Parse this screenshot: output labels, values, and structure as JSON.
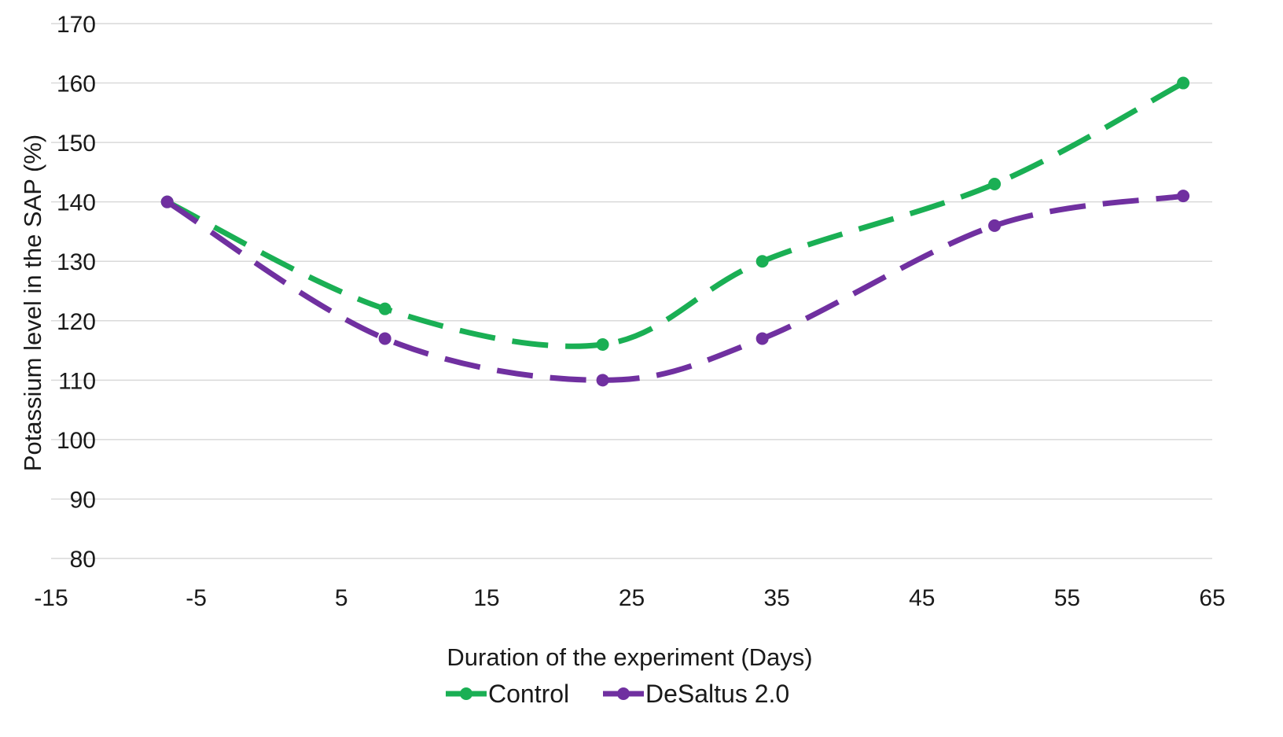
{
  "chart_data": {
    "type": "line",
    "title": "",
    "xlabel": "Duration of the experiment (Days)",
    "ylabel": "Potassium level in the SAP (%)",
    "xlim": [
      -15,
      65
    ],
    "ylim": [
      80,
      170
    ],
    "xticks": [
      -15,
      -5,
      5,
      15,
      25,
      35,
      45,
      55,
      65
    ],
    "yticks": [
      80,
      90,
      100,
      110,
      120,
      130,
      140,
      150,
      160,
      170
    ],
    "grid": true,
    "legend": "bottom",
    "series": [
      {
        "name": "Control",
        "color": "#1aaf54",
        "x": [
          -7,
          8,
          23,
          34,
          50,
          63
        ],
        "values": [
          140,
          122,
          116,
          130,
          143,
          160
        ]
      },
      {
        "name": "DeSaltus 2.0",
        "color": "#7030a0",
        "x": [
          -7,
          8,
          23,
          34,
          50,
          63
        ],
        "values": [
          140,
          117,
          110,
          117,
          136,
          141
        ]
      }
    ]
  }
}
